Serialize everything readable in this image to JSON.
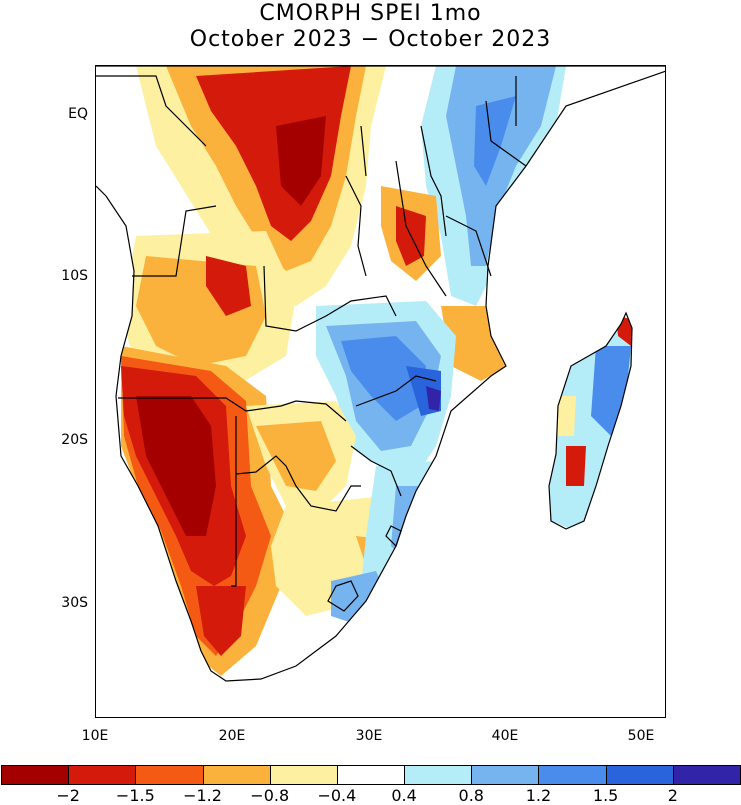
{
  "title": {
    "line1": "CMORPH SPEI 1mo",
    "line2": "October 2023 − October 2023"
  },
  "map": {
    "region": "Southern Africa",
    "lat_range": [
      -37,
      3
    ],
    "lon_range": [
      10,
      52
    ],
    "y_ticks": [
      {
        "label": "EQ",
        "lat": 0
      },
      {
        "label": "10S",
        "lat": -10
      },
      {
        "label": "20S",
        "lat": -20
      },
      {
        "label": "30S",
        "lat": -30
      }
    ],
    "x_ticks": [
      {
        "label": "10E",
        "lon": 10
      },
      {
        "label": "20E",
        "lon": 20
      },
      {
        "label": "30E",
        "lon": 30
      },
      {
        "label": "40E",
        "lon": 40
      },
      {
        "label": "50E",
        "lon": 50
      }
    ]
  },
  "colorbar": {
    "colors": [
      "#a50000",
      "#d41a0a",
      "#f45a14",
      "#fbb23c",
      "#fdf0a0",
      "#ffffff",
      "#b4ecf8",
      "#76b4f0",
      "#4a8ceb",
      "#2a64dc",
      "#3224a8"
    ],
    "labels": [
      "−2",
      "−1.5",
      "−1.2",
      "−0.8",
      "−0.4",
      "0.4",
      "0.8",
      "1.2",
      "1.5",
      "2"
    ]
  }
}
